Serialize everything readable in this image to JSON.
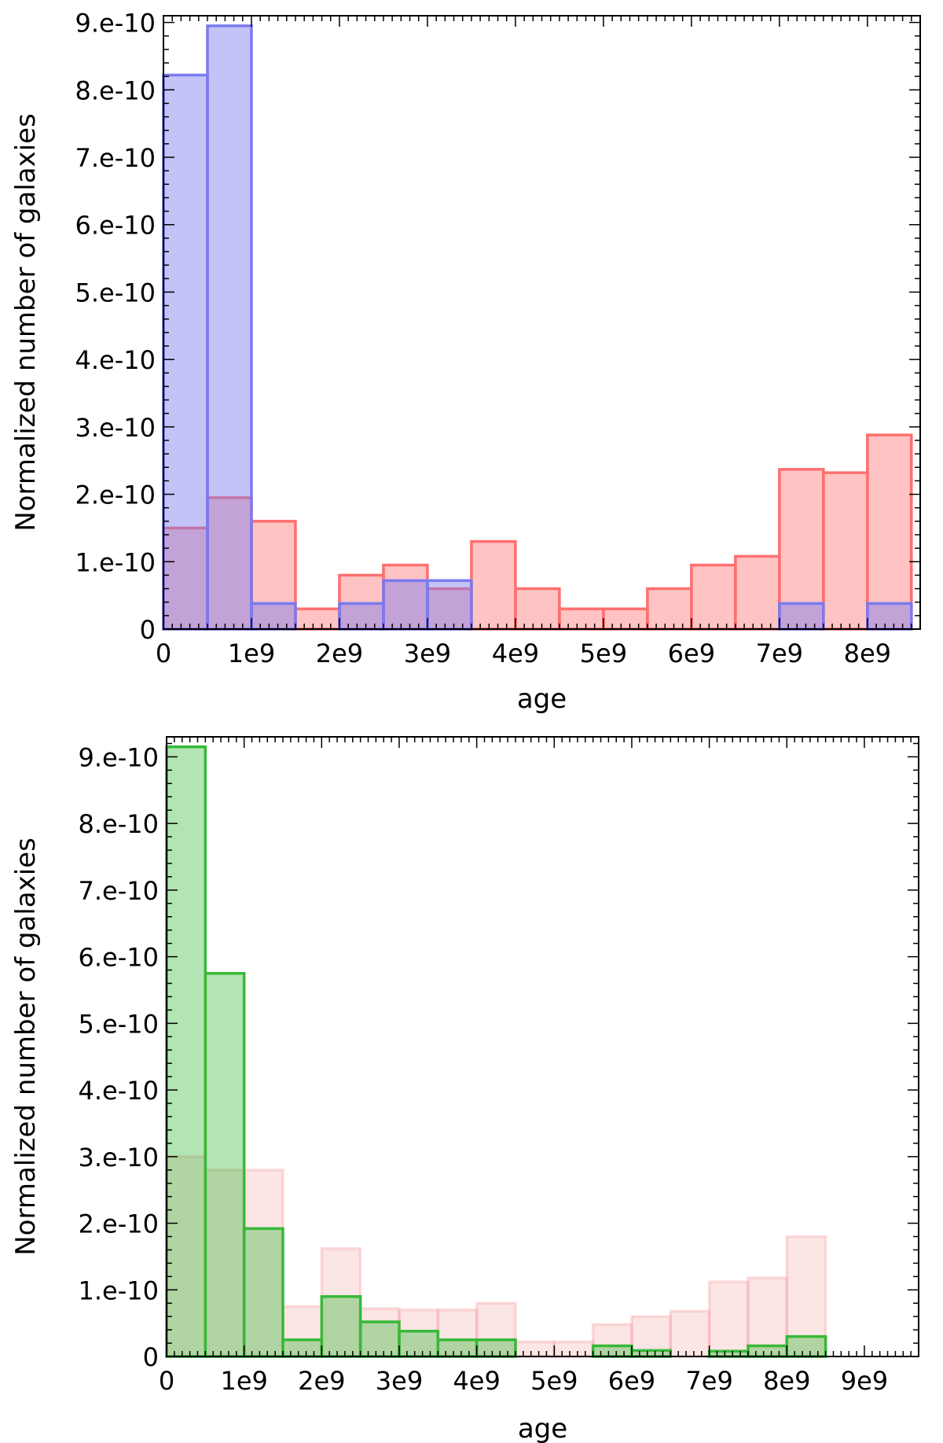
{
  "chart_data": [
    {
      "type": "bar",
      "xlabel": "age",
      "ylabel": "Normalized number of galaxies",
      "bin_width": 500000000,
      "xlim": [
        0,
        8600000000
      ],
      "ylim": [
        0,
        9.1e-10
      ],
      "x_ticks": [
        0,
        1000000000.0,
        2000000000.0,
        3000000000.0,
        4000000000.0,
        5000000000.0,
        6000000000.0,
        7000000000.0,
        8000000000.0
      ],
      "x_tick_labels": [
        "0",
        "1e9",
        "2e9",
        "3e9",
        "4e9",
        "5e9",
        "6e9",
        "7e9",
        "8e9"
      ],
      "y_ticks": [
        0,
        1e-10,
        2e-10,
        3e-10,
        4e-10,
        5e-10,
        6e-10,
        7e-10,
        8e-10,
        9e-10
      ],
      "y_tick_labels": [
        "0",
        "1.e-10",
        "2.e-10",
        "3.e-10",
        "4.e-10",
        "5.e-10",
        "6.e-10",
        "7.e-10",
        "8.e-10",
        "9.e-10"
      ],
      "series": [
        {
          "color": "#ff6f6f",
          "bin_starts": [
            0,
            500000000.0,
            1000000000.0,
            1500000000.0,
            2000000000.0,
            2500000000.0,
            3000000000.0,
            3500000000.0,
            4000000000.0,
            4500000000.0,
            5000000000.0,
            5500000000.0,
            6000000000.0,
            6500000000.0,
            7000000000.0,
            7500000000.0,
            8000000000.0
          ],
          "values": [
            1.5e-10,
            1.95e-10,
            1.6e-10,
            3e-11,
            8e-11,
            9.5e-11,
            6e-11,
            1.3e-10,
            6e-11,
            3e-11,
            3e-11,
            6e-11,
            9.5e-11,
            1.08e-10,
            2.37e-10,
            2.32e-10,
            2.88e-10
          ]
        },
        {
          "color": "#7a7af0",
          "bin_starts": [
            0,
            500000000.0,
            1000000000.0,
            2000000000.0,
            2500000000.0,
            3000000000.0,
            7000000000.0,
            8000000000.0
          ],
          "values": [
            8.22e-10,
            8.95e-10,
            3.8e-11,
            3.8e-11,
            7.2e-11,
            7.2e-11,
            3.8e-11,
            3.8e-11
          ]
        }
      ]
    },
    {
      "type": "bar",
      "xlabel": "age",
      "ylabel": "Normalized number of galaxies",
      "bin_width": 500000000,
      "xlim": [
        0,
        9700000000
      ],
      "ylim": [
        0,
        9.3e-10
      ],
      "x_ticks": [
        0,
        1000000000.0,
        2000000000.0,
        3000000000.0,
        4000000000.0,
        5000000000.0,
        6000000000.0,
        7000000000.0,
        8000000000.0,
        9000000000.0
      ],
      "x_tick_labels": [
        "0",
        "1e9",
        "2e9",
        "3e9",
        "4e9",
        "5e9",
        "6e9",
        "7e9",
        "8e9",
        "9e9"
      ],
      "y_ticks": [
        0,
        1e-10,
        2e-10,
        3e-10,
        4e-10,
        5e-10,
        6e-10,
        7e-10,
        8e-10,
        9e-10
      ],
      "y_tick_labels": [
        "0",
        "1.e-10",
        "2.e-10",
        "3.e-10",
        "4.e-10",
        "5.e-10",
        "6.e-10",
        "7.e-10",
        "8.e-10",
        "9.e-10"
      ],
      "series": [
        {
          "color": "#f6a0a0",
          "bin_starts": [
            0,
            500000000.0,
            1000000000.0,
            1500000000.0,
            2000000000.0,
            2500000000.0,
            3000000000.0,
            3500000000.0,
            4000000000.0,
            4500000000.0,
            5000000000.0,
            5500000000.0,
            6000000000.0,
            6500000000.0,
            7000000000.0,
            7500000000.0,
            8000000000.0
          ],
          "values": [
            3e-10,
            2.8e-10,
            2.8e-10,
            7.5e-11,
            1.62e-10,
            7.2e-11,
            7e-11,
            7e-11,
            8e-11,
            2.2e-11,
            2.2e-11,
            4.8e-11,
            6e-11,
            6.8e-11,
            1.12e-10,
            1.18e-10,
            1.8e-10
          ]
        },
        {
          "color": "#38b838",
          "bin_starts": [
            0,
            500000000.0,
            1000000000.0,
            1500000000.0,
            2000000000.0,
            2500000000.0,
            3000000000.0,
            3500000000.0,
            4000000000.0,
            5500000000.0,
            6000000000.0,
            7000000000.0,
            7500000000.0,
            8000000000.0
          ],
          "values": [
            9.15e-10,
            5.75e-10,
            1.92e-10,
            2.5e-11,
            9e-11,
            5.2e-11,
            3.8e-11,
            2.5e-11,
            2.5e-11,
            1.6e-11,
            9e-12,
            8e-12,
            1.6e-11,
            3e-11
          ]
        }
      ]
    }
  ]
}
